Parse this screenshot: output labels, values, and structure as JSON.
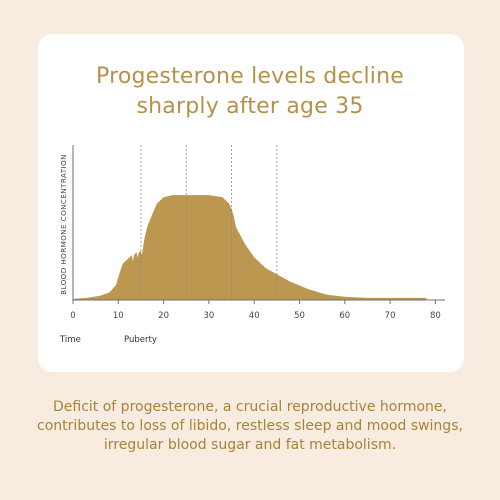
{
  "colors": {
    "background": "#f8ebe0",
    "card": "#ffffff",
    "accent": "#b08c42",
    "title": "#b59249",
    "fill": "#bb974f",
    "axis": "#6f6f6f",
    "gridline": "#8a8a8a",
    "caption": "#a78436"
  },
  "title": {
    "line1": "Progesterone levels decline",
    "line2": "sharply after age 35"
  },
  "caption": {
    "line1": "Deficit of progesterone, a crucial reproductive hormone,",
    "line2": "contributes to loss of libido, restless sleep and mood swings,",
    "line3": "irregular blood sugar and fat metabolism."
  },
  "chart_data": {
    "type": "area",
    "title": "Progesterone levels decline sharply after age 35",
    "ylabel": "BLOOD HORMONE CONCENTRATION",
    "xlabel": "Time",
    "x_annotation": "Puberty",
    "xlim": [
      0,
      82
    ],
    "ylim": [
      0,
      100
    ],
    "x_ticks": [
      "0",
      "10",
      "20",
      "30",
      "40",
      "50",
      "60",
      "70",
      "80"
    ],
    "dashed_lines_at": [
      15,
      25,
      35,
      45
    ],
    "grid": false,
    "legend": "none",
    "series": [
      {
        "x": [
          0,
          3,
          6,
          8,
          9.5,
          10.5,
          11,
          12,
          12.5,
          13,
          13.2,
          13.5,
          14,
          14.2,
          14.5,
          15,
          15.2,
          15.8,
          16.5,
          17.5,
          18.5,
          20,
          22,
          25,
          30,
          33,
          34.5,
          35,
          35.5,
          36,
          38,
          40,
          42.5,
          45,
          48,
          52,
          56,
          60,
          65,
          70,
          75,
          78
        ],
        "y": [
          1,
          2,
          4,
          7,
          14,
          28,
          34,
          38,
          40,
          42,
          36,
          42,
          45,
          40,
          44,
          46,
          42,
          58,
          70,
          80,
          90,
          96,
          98,
          98,
          98,
          96,
          90,
          85,
          78,
          68,
          52,
          40,
          30,
          24,
          17,
          10,
          5,
          3,
          2,
          2,
          2,
          2
        ]
      }
    ]
  }
}
